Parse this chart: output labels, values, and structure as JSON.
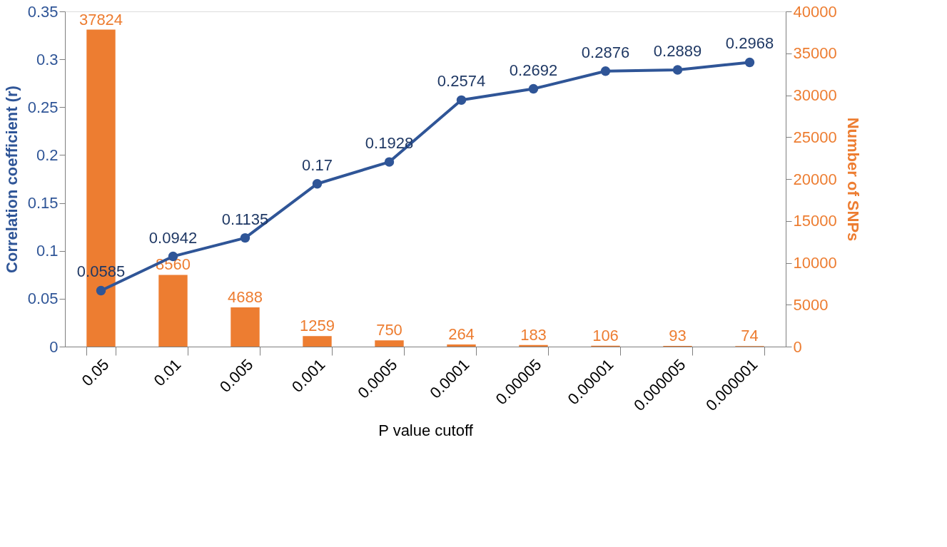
{
  "chart_data": {
    "type": "bar",
    "xlabel": "P value cutoff",
    "ylabel": "Correlation coefficient (r)",
    "y2label": "Number of SNPs",
    "categories": [
      "0.05",
      "0.01",
      "0.005",
      "0.001",
      "0.0005",
      "0.0001",
      "0.00005",
      "0.00001",
      "0.000005",
      "0.000001"
    ],
    "series": [
      {
        "name": null,
        "axis": "y2",
        "color": "#ed7d31",
        "values": [
          37824,
          8560,
          4688,
          1259,
          750,
          264,
          183,
          106,
          93,
          74
        ]
      },
      {
        "name": null,
        "type": "line",
        "color": "#2f5597",
        "values": [
          0.0585,
          0.0942,
          0.1135,
          0.17,
          0.1928,
          0.2574,
          0.2692,
          0.2876,
          0.2889,
          0.2968
        ]
      }
    ],
    "ylim": [
      0,
      0.35
    ],
    "yticks": [
      0,
      0.05,
      0.1,
      0.15,
      0.2,
      0.25,
      0.3,
      0.35
    ],
    "y2lim": [
      0,
      40000
    ],
    "y2ticks": [
      0,
      5000,
      10000,
      15000,
      20000,
      25000,
      30000,
      35000,
      40000
    ],
    "data_labels": true,
    "grid": false,
    "marker": "circle",
    "line_style": "solid"
  }
}
